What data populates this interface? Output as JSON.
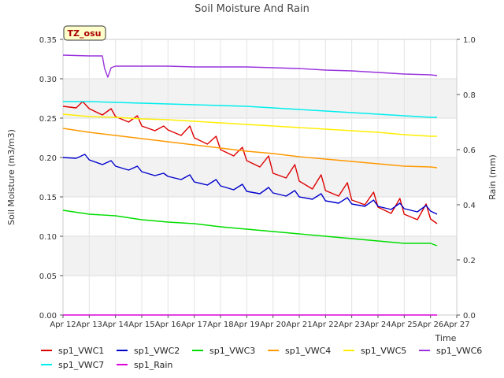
{
  "chart_data": {
    "type": "line",
    "title": "Soil Moisture And Rain",
    "badge": "TZ_osu",
    "xlabel": "Time",
    "ylabel": "Soil Moisture (m3/m3)",
    "ylabel_right": "Rain (mm)",
    "ylim": [
      0,
      0.35
    ],
    "ylim_right": [
      0,
      1.0
    ],
    "y_ticks": [
      "0.00",
      "0.05",
      "0.10",
      "0.15",
      "0.20",
      "0.25",
      "0.30",
      "0.35"
    ],
    "y_ticks_right": [
      "0.0",
      "0.2",
      "0.4",
      "0.6",
      "0.8",
      "1.0"
    ],
    "x_ticks": [
      "Apr 12",
      "Apr 13",
      "Apr 14",
      "Apr 15",
      "Apr 16",
      "Apr 17",
      "Apr 18",
      "Apr 19",
      "Apr 20",
      "Apr 21",
      "Apr 22",
      "Apr 23",
      "Apr 24",
      "Apr 25",
      "Apr 26",
      "Apr 27"
    ],
    "xlim": [
      "Apr 12",
      "Apr 27"
    ],
    "grid": true,
    "legend_position": "bottom",
    "series": [
      {
        "name": "sp1_VWC1",
        "color": "#dd0000",
        "axis": "left",
        "points": [
          [
            "Apr 12",
            0.265
          ],
          [
            "Apr 12 12:00",
            0.263
          ],
          [
            "Apr 12 18:00",
            0.271
          ],
          [
            "Apr 13",
            0.262
          ],
          [
            "Apr 13 12:00",
            0.254
          ],
          [
            "Apr 13 20:00",
            0.262
          ],
          [
            "Apr 14",
            0.252
          ],
          [
            "Apr 14 12:00",
            0.245
          ],
          [
            "Apr 14 20:00",
            0.253
          ],
          [
            "Apr 15",
            0.24
          ],
          [
            "Apr 15 12:00",
            0.234
          ],
          [
            "Apr 15 20:00",
            0.24
          ],
          [
            "Apr 16",
            0.235
          ],
          [
            "Apr 16 12:00",
            0.228
          ],
          [
            "Apr 16 20:00",
            0.24
          ],
          [
            "Apr 17",
            0.225
          ],
          [
            "Apr 17 12:00",
            0.217
          ],
          [
            "Apr 17 20:00",
            0.227
          ],
          [
            "Apr 18",
            0.21
          ],
          [
            "Apr 18 12:00",
            0.202
          ],
          [
            "Apr 18 20:00",
            0.213
          ],
          [
            "Apr 19",
            0.196
          ],
          [
            "Apr 19 12:00",
            0.188
          ],
          [
            "Apr 19 20:00",
            0.202
          ],
          [
            "Apr 20",
            0.18
          ],
          [
            "Apr 20 12:00",
            0.174
          ],
          [
            "Apr 20 20:00",
            0.191
          ],
          [
            "Apr 21",
            0.17
          ],
          [
            "Apr 21 12:00",
            0.16
          ],
          [
            "Apr 21 20:00",
            0.178
          ],
          [
            "Apr 22",
            0.158
          ],
          [
            "Apr 22 12:00",
            0.151
          ],
          [
            "Apr 22 20:00",
            0.168
          ],
          [
            "Apr 23",
            0.146
          ],
          [
            "Apr 23 12:00",
            0.14
          ],
          [
            "Apr 23 20:00",
            0.156
          ],
          [
            "Apr 24",
            0.137
          ],
          [
            "Apr 24 12:00",
            0.129
          ],
          [
            "Apr 24 20:00",
            0.148
          ],
          [
            "Apr 25",
            0.128
          ],
          [
            "Apr 25 12:00",
            0.121
          ],
          [
            "Apr 25 20:00",
            0.141
          ],
          [
            "Apr 26",
            0.122
          ],
          [
            "Apr 26 06:00",
            0.116
          ]
        ]
      },
      {
        "name": "sp1_VWC2",
        "color": "#0000cc",
        "axis": "left",
        "points": [
          [
            "Apr 12",
            0.2
          ],
          [
            "Apr 12 12:00",
            0.199
          ],
          [
            "Apr 12 20:00",
            0.204
          ],
          [
            "Apr 13",
            0.197
          ],
          [
            "Apr 13 12:00",
            0.191
          ],
          [
            "Apr 13 20:00",
            0.196
          ],
          [
            "Apr 14",
            0.189
          ],
          [
            "Apr 14 12:00",
            0.184
          ],
          [
            "Apr 14 20:00",
            0.189
          ],
          [
            "Apr 15",
            0.182
          ],
          [
            "Apr 15 12:00",
            0.177
          ],
          [
            "Apr 15 20:00",
            0.18
          ],
          [
            "Apr 16",
            0.176
          ],
          [
            "Apr 16 12:00",
            0.172
          ],
          [
            "Apr 16 20:00",
            0.178
          ],
          [
            "Apr 17",
            0.169
          ],
          [
            "Apr 17 12:00",
            0.165
          ],
          [
            "Apr 17 20:00",
            0.172
          ],
          [
            "Apr 18",
            0.164
          ],
          [
            "Apr 18 12:00",
            0.159
          ],
          [
            "Apr 18 20:00",
            0.166
          ],
          [
            "Apr 19",
            0.157
          ],
          [
            "Apr 19 12:00",
            0.154
          ],
          [
            "Apr 19 20:00",
            0.162
          ],
          [
            "Apr 20",
            0.155
          ],
          [
            "Apr 20 12:00",
            0.151
          ],
          [
            "Apr 20 20:00",
            0.158
          ],
          [
            "Apr 21",
            0.15
          ],
          [
            "Apr 21 12:00",
            0.147
          ],
          [
            "Apr 21 20:00",
            0.154
          ],
          [
            "Apr 22",
            0.145
          ],
          [
            "Apr 22 12:00",
            0.142
          ],
          [
            "Apr 22 20:00",
            0.149
          ],
          [
            "Apr 23",
            0.141
          ],
          [
            "Apr 23 12:00",
            0.138
          ],
          [
            "Apr 23 20:00",
            0.146
          ],
          [
            "Apr 24",
            0.138
          ],
          [
            "Apr 24 12:00",
            0.134
          ],
          [
            "Apr 24 20:00",
            0.142
          ],
          [
            "Apr 25",
            0.135
          ],
          [
            "Apr 25 12:00",
            0.131
          ],
          [
            "Apr 25 20:00",
            0.139
          ],
          [
            "Apr 26",
            0.132
          ],
          [
            "Apr 26 06:00",
            0.128
          ]
        ]
      },
      {
        "name": "sp1_VWC3",
        "color": "#00dd00",
        "axis": "left",
        "points": [
          [
            "Apr 12",
            0.133
          ],
          [
            "Apr 13",
            0.128
          ],
          [
            "Apr 14",
            0.126
          ],
          [
            "Apr 15",
            0.121
          ],
          [
            "Apr 16",
            0.118
          ],
          [
            "Apr 17",
            0.116
          ],
          [
            "Apr 18",
            0.112
          ],
          [
            "Apr 19",
            0.109
          ],
          [
            "Apr 20",
            0.106
          ],
          [
            "Apr 21",
            0.103
          ],
          [
            "Apr 22",
            0.1
          ],
          [
            "Apr 23",
            0.097
          ],
          [
            "Apr 24",
            0.094
          ],
          [
            "Apr 25",
            0.091
          ],
          [
            "Apr 26",
            0.091
          ],
          [
            "Apr 26 06:00",
            0.088
          ]
        ]
      },
      {
        "name": "sp1_VWC4",
        "color": "#ff9900",
        "axis": "left",
        "points": [
          [
            "Apr 12",
            0.237
          ],
          [
            "Apr 13",
            0.232
          ],
          [
            "Apr 14",
            0.228
          ],
          [
            "Apr 15",
            0.224
          ],
          [
            "Apr 16",
            0.22
          ],
          [
            "Apr 17",
            0.216
          ],
          [
            "Apr 18",
            0.212
          ],
          [
            "Apr 19",
            0.208
          ],
          [
            "Apr 20",
            0.205
          ],
          [
            "Apr 21",
            0.201
          ],
          [
            "Apr 22",
            0.198
          ],
          [
            "Apr 23",
            0.195
          ],
          [
            "Apr 24",
            0.192
          ],
          [
            "Apr 25",
            0.189
          ],
          [
            "Apr 26",
            0.188
          ],
          [
            "Apr 26 06:00",
            0.187
          ]
        ]
      },
      {
        "name": "sp1_VWC5",
        "color": "#ffee00",
        "axis": "left",
        "points": [
          [
            "Apr 12",
            0.255
          ],
          [
            "Apr 13",
            0.252
          ],
          [
            "Apr 14",
            0.251
          ],
          [
            "Apr 15",
            0.249
          ],
          [
            "Apr 16",
            0.248
          ],
          [
            "Apr 17",
            0.246
          ],
          [
            "Apr 18",
            0.244
          ],
          [
            "Apr 19",
            0.242
          ],
          [
            "Apr 20",
            0.24
          ],
          [
            "Apr 21",
            0.238
          ],
          [
            "Apr 22",
            0.236
          ],
          [
            "Apr 23",
            0.234
          ],
          [
            "Apr 24",
            0.232
          ],
          [
            "Apr 25",
            0.229
          ],
          [
            "Apr 26",
            0.227
          ],
          [
            "Apr 26 06:00",
            0.227
          ]
        ]
      },
      {
        "name": "sp1_VWC6",
        "color": "#9933dd",
        "axis": "left",
        "points": [
          [
            "Apr 12",
            0.33
          ],
          [
            "Apr 13",
            0.329
          ],
          [
            "Apr 13 12:00",
            0.329
          ],
          [
            "Apr 13 14:00",
            0.313
          ],
          [
            "Apr 13 17:00",
            0.302
          ],
          [
            "Apr 13 20:00",
            0.314
          ],
          [
            "Apr 14",
            0.316
          ],
          [
            "Apr 15",
            0.316
          ],
          [
            "Apr 16",
            0.316
          ],
          [
            "Apr 17",
            0.315
          ],
          [
            "Apr 18",
            0.315
          ],
          [
            "Apr 19",
            0.315
          ],
          [
            "Apr 20",
            0.314
          ],
          [
            "Apr 21",
            0.313
          ],
          [
            "Apr 22",
            0.311
          ],
          [
            "Apr 23",
            0.31
          ],
          [
            "Apr 24",
            0.308
          ],
          [
            "Apr 25",
            0.306
          ],
          [
            "Apr 26",
            0.305
          ],
          [
            "Apr 26 06:00",
            0.304
          ]
        ]
      },
      {
        "name": "sp1_VWC7",
        "color": "#00eeee",
        "axis": "left",
        "points": [
          [
            "Apr 12",
            0.271
          ],
          [
            "Apr 13",
            0.271
          ],
          [
            "Apr 14",
            0.27
          ],
          [
            "Apr 15",
            0.269
          ],
          [
            "Apr 16",
            0.268
          ],
          [
            "Apr 17",
            0.267
          ],
          [
            "Apr 18",
            0.266
          ],
          [
            "Apr 19",
            0.265
          ],
          [
            "Apr 20",
            0.263
          ],
          [
            "Apr 21",
            0.261
          ],
          [
            "Apr 22",
            0.259
          ],
          [
            "Apr 23",
            0.257
          ],
          [
            "Apr 24",
            0.255
          ],
          [
            "Apr 25",
            0.253
          ],
          [
            "Apr 26",
            0.251
          ],
          [
            "Apr 26 06:00",
            0.251
          ]
        ]
      },
      {
        "name": "sp1_Rain",
        "color": "#dd00dd",
        "axis": "right",
        "points": [
          [
            "Apr 12",
            0.0
          ],
          [
            "Apr 26 06:00",
            0.0
          ]
        ]
      }
    ]
  }
}
